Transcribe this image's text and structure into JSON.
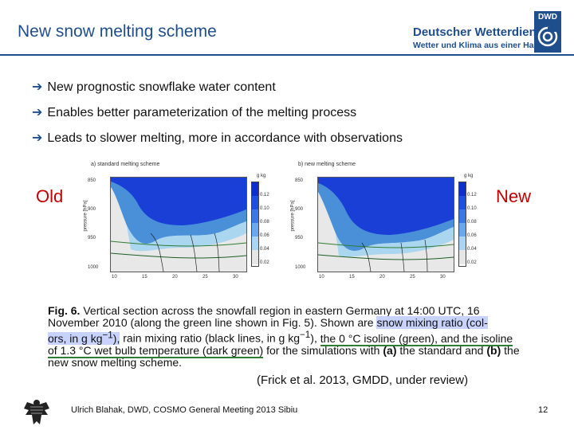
{
  "header": {
    "title": "New snow melting scheme",
    "org_name": "Deutscher Wetterdienst",
    "org_tagline": "Wetter und Klima aus einer Hand",
    "logo_text": "DWD"
  },
  "bullets": [
    "New prognostic snowflake water content",
    "Enables better parameterization of the melting process",
    "Leads to slower melting, more in accordance with observations"
  ],
  "labels": {
    "old": "Old",
    "new": "New"
  },
  "plots": [
    {
      "title": "a) standard melting scheme",
      "y_label": "pressure [hPa]",
      "y_ticks": [
        "850",
        "900",
        "950",
        "1000"
      ],
      "x_ticks": [
        "10",
        "15",
        "20",
        "25",
        "30"
      ],
      "cbar_title": "g kg",
      "cbar_labels": [
        "0.12",
        "0.10",
        "0.08",
        "0.06",
        "0.04",
        "0.02"
      ]
    },
    {
      "title": "b) new melting scheme",
      "y_label": "pressure [hPa]",
      "y_ticks": [
        "850",
        "900",
        "950",
        "1000"
      ],
      "x_ticks": [
        "10",
        "15",
        "20",
        "25",
        "30"
      ],
      "cbar_title": "g kg",
      "cbar_labels": [
        "0.12",
        "0.10",
        "0.08",
        "0.06",
        "0.04",
        "0.02"
      ]
    }
  ],
  "caption": {
    "fig": "Fig. 6.",
    "l1_a": "Vertical section across the snowfall region in eastern Germany at 14:00 UTC, 16",
    "l2_a": "November 2010 (along the green line shown in Fig. 5). Shown are",
    "l2_hl": "snow mixing ratio (col-",
    "l3_hl": "ors, in g kg",
    "l3_b": "rain mixing ratio (black lines, in g kg",
    "l3_c": "the 0 °C isoline (green), and the isoline",
    "l4_a": "of 1.3 °C wet bulb temperature (dark green)",
    "l4_b": "for the simulations with",
    "l4_a_lab": "(a)",
    "l4_c": "the standard and",
    "l4_b_lab": "(b)",
    "l4_d": "the",
    "l5": "new snow melting scheme."
  },
  "citation": "(Frick et al. 2013, GMDD, under review)",
  "footer": {
    "text": "Ulrich Blahak, DWD, COSMO General Meeting 2013 Sibiu",
    "page": "12"
  }
}
